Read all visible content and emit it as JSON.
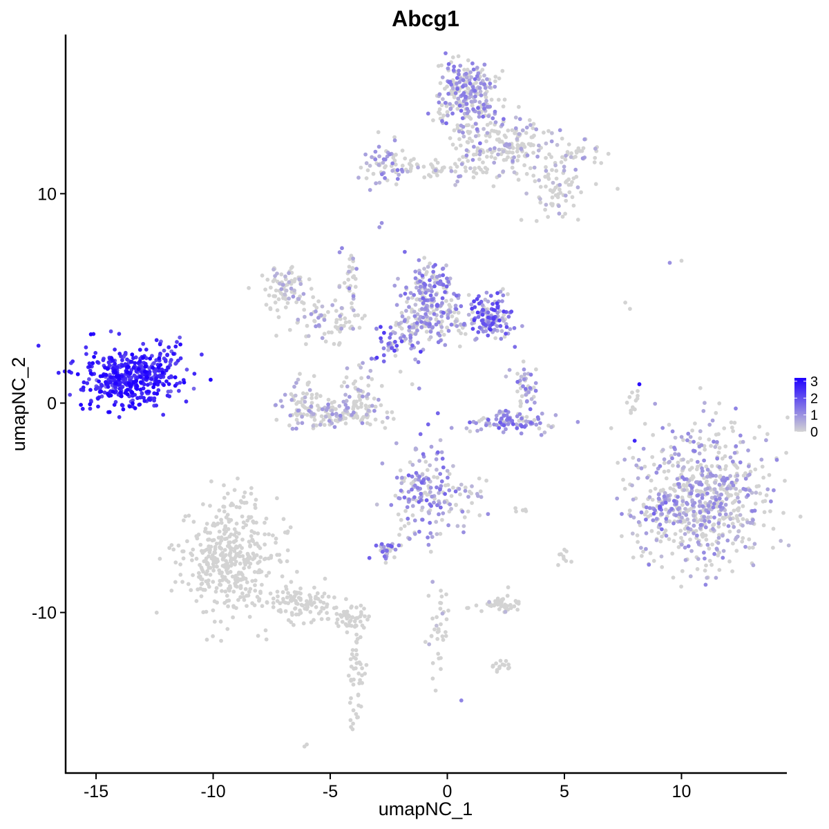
{
  "chart_data": {
    "type": "scatter",
    "title": "Abcg1",
    "xlabel": "umapNC_1",
    "ylabel": "umapNC_2",
    "xlim": [
      -16.3,
      14.5
    ],
    "ylim": [
      -17.7,
      17.6
    ],
    "x_ticks": [
      -15,
      -10,
      -5,
      0,
      5,
      10
    ],
    "x_tick_labels": [
      "-15",
      "-10",
      "-5",
      "0",
      "5",
      "10"
    ],
    "y_ticks": [
      -10,
      0,
      10
    ],
    "y_tick_labels": [
      "-10",
      "0",
      "10"
    ],
    "grid": false,
    "legend_position": "right",
    "color_scale": {
      "low_color": "#d3d3d3",
      "high_color": "#1f00ff",
      "min": 0,
      "max": 3.2,
      "breaks": [
        0,
        1,
        2,
        3
      ],
      "break_labels": [
        "0",
        "1",
        "2",
        "3"
      ]
    },
    "clusters": [
      {
        "cx": -13.6,
        "cy": 1.2,
        "sx": 1.0,
        "sy": 0.7,
        "n": 420,
        "expr": 2.6
      },
      {
        "cx": -12.0,
        "cy": 1.8,
        "sx": 0.4,
        "sy": 0.6,
        "n": 40,
        "expr": 2.2
      },
      {
        "cx": 0.9,
        "cy": 14.7,
        "sx": 0.7,
        "sy": 0.9,
        "n": 260,
        "expr": 0.8
      },
      {
        "cx": 2.5,
        "cy": 12.3,
        "sx": 1.0,
        "sy": 0.7,
        "n": 160,
        "expr": 0.4
      },
      {
        "cx": 4.6,
        "cy": 10.3,
        "sx": 0.7,
        "sy": 0.6,
        "n": 70,
        "expr": 0.25
      },
      {
        "cx": 5.5,
        "cy": 11.8,
        "sx": 0.6,
        "sy": 0.3,
        "n": 35,
        "expr": 0.4
      },
      {
        "cx": -2.6,
        "cy": 11.5,
        "sx": 0.6,
        "sy": 0.5,
        "n": 60,
        "expr": 0.7
      },
      {
        "cx": -0.6,
        "cy": 11.2,
        "sx": 0.9,
        "sy": 0.2,
        "n": 40,
        "expr": 0.3
      },
      {
        "cx": 1.0,
        "cy": 11.6,
        "sx": 0.3,
        "sy": 0.7,
        "n": 30,
        "expr": 0.5
      },
      {
        "cx": -7.0,
        "cy": 5.5,
        "sx": 0.5,
        "sy": 0.5,
        "n": 80,
        "expr": 0.3
      },
      {
        "cx": -5.0,
        "cy": 3.9,
        "sx": 0.9,
        "sy": 0.6,
        "n": 70,
        "expr": 0.4
      },
      {
        "cx": -0.8,
        "cy": 5.5,
        "sx": 0.5,
        "sy": 0.6,
        "n": 120,
        "expr": 0.9
      },
      {
        "cx": -0.4,
        "cy": 4.0,
        "sx": 0.9,
        "sy": 0.6,
        "n": 130,
        "expr": 0.7
      },
      {
        "cx": 1.9,
        "cy": 4.1,
        "sx": 0.5,
        "sy": 0.5,
        "n": 130,
        "expr": 1.3
      },
      {
        "cx": -2.4,
        "cy": 2.6,
        "sx": 0.4,
        "sy": 0.4,
        "n": 35,
        "expr": 1.3
      },
      {
        "cx": -1.4,
        "cy": 3.3,
        "sx": 0.4,
        "sy": 0.5,
        "n": 35,
        "expr": 0.7
      },
      {
        "cx": -4.1,
        "cy": 6.0,
        "sx": 0.2,
        "sy": 1.0,
        "n": 30,
        "expr": 0.6
      },
      {
        "cx": -6.1,
        "cy": 0.0,
        "sx": 0.5,
        "sy": 0.6,
        "n": 70,
        "expr": 0.4
      },
      {
        "cx": -4.5,
        "cy": -0.5,
        "sx": 0.9,
        "sy": 0.35,
        "n": 110,
        "expr": 0.5
      },
      {
        "cx": -3.7,
        "cy": 0.6,
        "sx": 0.4,
        "sy": 0.6,
        "n": 40,
        "expr": 0.4
      },
      {
        "cx": 2.6,
        "cy": -0.9,
        "sx": 1.0,
        "sy": 0.25,
        "n": 90,
        "expr": 1.0
      },
      {
        "cx": 3.3,
        "cy": 0.7,
        "sx": 0.3,
        "sy": 0.6,
        "n": 45,
        "expr": 0.8
      },
      {
        "cx": -1.0,
        "cy": -4.0,
        "sx": 0.6,
        "sy": 0.9,
        "n": 140,
        "expr": 0.9
      },
      {
        "cx": 0.6,
        "cy": -4.5,
        "sx": 0.6,
        "sy": 0.6,
        "n": 40,
        "expr": 0.5
      },
      {
        "cx": -1.7,
        "cy": -5.9,
        "sx": 0.3,
        "sy": 0.6,
        "n": 15,
        "expr": 0.7
      },
      {
        "cx": -2.6,
        "cy": -7.0,
        "sx": 0.3,
        "sy": 0.25,
        "n": 30,
        "expr": 1.0
      },
      {
        "cx": 11.0,
        "cy": -4.5,
        "sx": 1.4,
        "sy": 1.7,
        "n": 650,
        "expr": 0.6
      },
      {
        "cx": 9.0,
        "cy": -5.2,
        "sx": 0.5,
        "sy": 0.4,
        "n": 50,
        "expr": 1.0
      },
      {
        "cx": -9.2,
        "cy": -7.4,
        "sx": 1.0,
        "sy": 1.4,
        "n": 420,
        "expr": 0.0
      },
      {
        "cx": -6.2,
        "cy": -9.6,
        "sx": 0.8,
        "sy": 0.5,
        "n": 90,
        "expr": 0.0
      },
      {
        "cx": -4.1,
        "cy": -10.2,
        "sx": 0.4,
        "sy": 0.3,
        "n": 50,
        "expr": 0.0
      },
      {
        "cx": -3.9,
        "cy": -13.0,
        "sx": 0.2,
        "sy": 1.6,
        "n": 50,
        "expr": 0.0
      },
      {
        "cx": 2.3,
        "cy": -9.6,
        "sx": 0.5,
        "sy": 0.2,
        "n": 45,
        "expr": 0.1
      },
      {
        "cx": -0.4,
        "cy": -10.6,
        "sx": 0.25,
        "sy": 1.1,
        "n": 35,
        "expr": 0.2
      },
      {
        "cx": 2.3,
        "cy": -12.5,
        "sx": 0.25,
        "sy": 0.2,
        "n": 15,
        "expr": 0.0
      },
      {
        "cx": 8.0,
        "cy": 0.0,
        "sx": 0.15,
        "sy": 0.3,
        "n": 12,
        "expr": 0.0
      },
      {
        "cx": 5.0,
        "cy": -7.6,
        "sx": 0.15,
        "sy": 0.3,
        "n": 8,
        "expr": 0.0
      },
      {
        "cx": 3.2,
        "cy": -5.1,
        "sx": 0.15,
        "sy": 0.1,
        "n": 6,
        "expr": 0.0
      }
    ],
    "points": [
      {
        "x": -11.4,
        "y": 2.8,
        "v": 3.0
      },
      {
        "x": -11.6,
        "y": 2.7,
        "v": 2.8
      },
      {
        "x": -10.8,
        "y": 1.4,
        "v": 2.6
      },
      {
        "x": 8.2,
        "y": 0.9,
        "v": 3.0
      },
      {
        "x": 8.0,
        "y": -1.8,
        "v": 2.6
      },
      {
        "x": 9.5,
        "y": 6.7,
        "v": 1.0
      },
      {
        "x": 10.0,
        "y": 6.8,
        "v": 0.0
      },
      {
        "x": 7.6,
        "y": 4.8,
        "v": 0.0
      },
      {
        "x": 7.8,
        "y": 4.5,
        "v": 0.0
      },
      {
        "x": -6.0,
        "y": -16.3,
        "v": 0.0
      },
      {
        "x": -6.1,
        "y": -16.4,
        "v": 0.0
      },
      {
        "x": 0.6,
        "y": -14.2,
        "v": 1.2
      },
      {
        "x": -2.8,
        "y": 8.6,
        "v": 1.0
      },
      {
        "x": -2.9,
        "y": 8.4,
        "v": 0.9
      },
      {
        "x": -4.5,
        "y": 7.4,
        "v": 1.2
      },
      {
        "x": -4.6,
        "y": 7.2,
        "v": 1.0
      },
      {
        "x": -2.0,
        "y": 1.5,
        "v": 0.0
      },
      {
        "x": -1.5,
        "y": 0.9,
        "v": 0.0
      },
      {
        "x": -1.2,
        "y": 0.7,
        "v": 1.0
      },
      {
        "x": 5.0,
        "y": -7.0,
        "v": 0.0
      },
      {
        "x": -0.7,
        "y": -7.1,
        "v": 0.0
      },
      {
        "x": -0.8,
        "y": -9.2,
        "v": 0.0
      },
      {
        "x": 2.6,
        "y": -8.8,
        "v": 0.0
      }
    ]
  }
}
